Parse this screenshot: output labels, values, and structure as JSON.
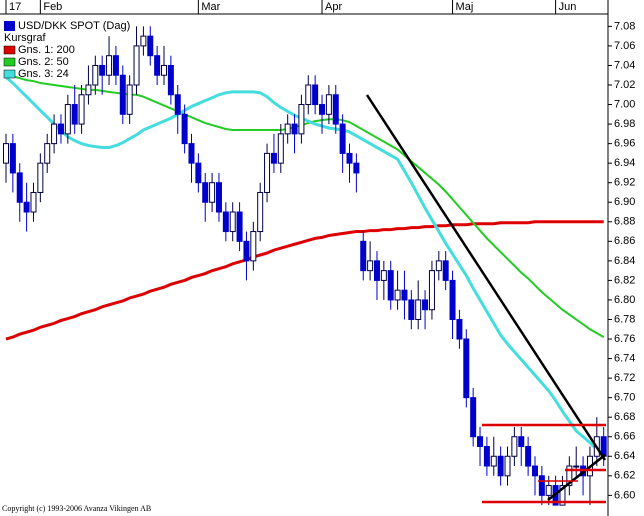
{
  "chart_data": {
    "type": "candlestick",
    "name": "USD/DKK SPOT (Dag)",
    "legend_heading": "Kursgraf",
    "copyright": "Copyright (c) 1993-2006 Avanza Vikingen AB",
    "color": "#0000cc",
    "up_color": "#ffffff",
    "wick_color": "#000044",
    "categories": [
      "17",
      null,
      null,
      null,
      null,
      "Feb",
      null,
      null,
      null,
      null,
      null,
      null,
      null,
      null,
      null,
      null,
      null,
      null,
      null,
      null,
      null,
      null,
      null,
      null,
      null,
      null,
      null,
      null,
      "Mar",
      null,
      null,
      null,
      null,
      null,
      null,
      null,
      null,
      null,
      null,
      null,
      null,
      null,
      null,
      null,
      null,
      null,
      "Apr",
      null,
      null,
      null,
      null,
      null,
      null,
      null,
      null,
      null,
      null,
      null,
      null,
      null,
      null,
      null,
      null,
      null,
      null,
      "Maj",
      null,
      null,
      null,
      null,
      null,
      null,
      null,
      null,
      null,
      null,
      null,
      null,
      null,
      null,
      "Jun",
      null,
      null,
      null,
      null,
      null,
      null,
      null
    ],
    "open": [
      6.94,
      6.96,
      6.93,
      6.9,
      6.89,
      6.91,
      6.94,
      6.96,
      6.98,
      6.97,
      7.0,
      6.98,
      7.01,
      7.02,
      7.04,
      7.03,
      7.05,
      7.03,
      6.99,
      7.02,
      7.06,
      7.07,
      7.05,
      7.03,
      7.04,
      7.01,
      6.99,
      6.96,
      6.94,
      6.92,
      6.9,
      6.92,
      6.89,
      6.87,
      6.89,
      6.86,
      6.84,
      6.87,
      6.91,
      6.95,
      6.94,
      6.97,
      6.98,
      6.97,
      7.0,
      7.02,
      7.0,
      6.99,
      7.01,
      6.98,
      6.95,
      6.94,
      6.86,
      6.83,
      6.84,
      6.82,
      6.83,
      6.8,
      6.81,
      6.8,
      6.78,
      6.8,
      6.79,
      6.83,
      6.84,
      6.82,
      6.78,
      6.76,
      6.7,
      6.66,
      6.65,
      6.63,
      6.64,
      6.62,
      6.64,
      6.66,
      6.65,
      6.63,
      6.62,
      6.6,
      6.61,
      6.59,
      6.61,
      6.63,
      6.63,
      6.62,
      6.64,
      6.66
    ],
    "high": [
      6.97,
      6.97,
      6.94,
      6.92,
      6.92,
      6.95,
      6.97,
      6.99,
      6.99,
      7.01,
      7.02,
      7.02,
      7.04,
      7.05,
      7.05,
      7.07,
      7.06,
      7.04,
      7.03,
      7.08,
      7.08,
      7.08,
      7.06,
      7.06,
      7.05,
      7.02,
      7.0,
      6.97,
      6.95,
      6.93,
      6.93,
      6.93,
      6.9,
      6.9,
      6.9,
      6.87,
      6.88,
      6.92,
      6.96,
      6.97,
      6.98,
      6.99,
      6.99,
      7.01,
      7.03,
      7.03,
      7.01,
      7.02,
      7.02,
      6.99,
      6.96,
      6.95,
      6.87,
      6.86,
      6.85,
      6.84,
      6.84,
      6.83,
      6.83,
      6.81,
      6.82,
      6.81,
      6.84,
      6.85,
      6.85,
      6.83,
      6.79,
      6.77,
      6.71,
      6.67,
      6.66,
      6.66,
      6.65,
      6.65,
      6.67,
      6.67,
      6.66,
      6.64,
      6.63,
      6.62,
      6.62,
      6.62,
      6.64,
      6.65,
      6.64,
      6.65,
      6.68,
      6.67
    ],
    "low": [
      6.92,
      6.91,
      6.88,
      6.87,
      6.88,
      6.9,
      6.93,
      6.95,
      6.96,
      6.96,
      6.97,
      6.97,
      7.0,
      7.01,
      7.01,
      7.02,
      7.02,
      6.98,
      6.98,
      7.01,
      7.05,
      7.04,
      7.02,
      7.02,
      7.0,
      6.97,
      6.95,
      6.92,
      6.91,
      6.88,
      6.89,
      6.88,
      6.86,
      6.86,
      6.85,
      6.82,
      6.83,
      6.86,
      6.9,
      6.93,
      6.93,
      6.96,
      6.95,
      6.96,
      6.99,
      6.99,
      6.97,
      6.98,
      6.97,
      6.93,
      6.92,
      6.91,
      6.82,
      6.82,
      6.8,
      6.8,
      6.79,
      6.79,
      6.78,
      6.77,
      6.77,
      6.77,
      6.78,
      6.82,
      6.81,
      6.76,
      6.75,
      6.69,
      6.65,
      6.63,
      6.62,
      6.62,
      6.61,
      6.61,
      6.63,
      6.63,
      6.62,
      6.6,
      6.59,
      6.59,
      6.59,
      6.59,
      6.6,
      6.62,
      6.6,
      6.59,
      6.63,
      6.63
    ],
    "close": [
      6.96,
      6.93,
      6.9,
      6.89,
      6.91,
      6.94,
      6.96,
      6.98,
      6.97,
      7.0,
      6.98,
      7.01,
      7.02,
      7.04,
      7.03,
      7.05,
      7.03,
      6.99,
      7.02,
      7.06,
      7.07,
      7.05,
      7.03,
      7.04,
      7.01,
      6.99,
      6.96,
      6.94,
      6.92,
      6.9,
      6.92,
      6.89,
      6.87,
      6.89,
      6.86,
      6.84,
      6.87,
      6.91,
      6.95,
      6.94,
      6.97,
      6.98,
      6.97,
      7.0,
      7.02,
      7.0,
      6.99,
      7.01,
      6.98,
      6.95,
      6.94,
      6.93,
      6.83,
      6.84,
      6.82,
      6.83,
      6.8,
      6.81,
      6.8,
      6.78,
      6.8,
      6.79,
      6.83,
      6.84,
      6.82,
      6.78,
      6.76,
      6.7,
      6.66,
      6.65,
      6.63,
      6.64,
      6.62,
      6.64,
      6.66,
      6.65,
      6.63,
      6.62,
      6.6,
      6.61,
      6.59,
      6.61,
      6.63,
      6.63,
      6.62,
      6.64,
      6.66,
      6.64
    ],
    "series": [
      {
        "name": "Gns. 1: 200",
        "color": "#dd0000",
        "width": 3,
        "values": [
          6.76,
          6.762,
          6.765,
          6.767,
          6.769,
          6.772,
          6.774,
          6.776,
          6.779,
          6.781,
          6.783,
          6.786,
          6.788,
          6.79,
          6.793,
          6.795,
          6.797,
          6.799,
          6.802,
          6.804,
          6.806,
          6.809,
          6.811,
          6.813,
          6.816,
          6.818,
          6.82,
          6.823,
          6.825,
          6.827,
          6.83,
          6.832,
          6.834,
          6.837,
          6.839,
          6.841,
          6.844,
          6.846,
          6.848,
          6.851,
          6.853,
          6.855,
          6.857,
          6.859,
          6.861,
          6.863,
          6.864,
          6.866,
          6.867,
          6.868,
          6.869,
          6.87,
          6.87,
          6.871,
          6.871,
          6.872,
          6.872,
          6.873,
          6.873,
          6.874,
          6.874,
          6.875,
          6.875,
          6.876,
          6.876,
          6.877,
          6.877,
          6.877,
          6.878,
          6.878,
          6.878,
          6.878,
          6.879,
          6.879,
          6.879,
          6.879,
          6.879,
          6.88,
          6.88,
          6.88,
          6.88,
          6.88,
          6.88,
          6.88,
          6.88,
          6.88,
          6.88,
          6.88
        ]
      },
      {
        "name": "Gns. 2: 50",
        "color": "#22cc22",
        "width": 2,
        "values": [
          7.03,
          7.029,
          7.027,
          7.025,
          7.024,
          7.022,
          7.021,
          7.02,
          7.019,
          7.018,
          7.017,
          7.016,
          7.015,
          7.015,
          7.014,
          7.013,
          7.012,
          7.011,
          7.01,
          7.01,
          7.008,
          7.005,
          7.002,
          6.999,
          6.996,
          6.993,
          6.99,
          6.987,
          6.984,
          6.981,
          6.979,
          6.977,
          6.975,
          6.974,
          6.974,
          6.974,
          6.974,
          6.974,
          6.974,
          6.974,
          6.974,
          6.975,
          6.977,
          6.979,
          6.981,
          6.983,
          6.984,
          6.985,
          6.985,
          6.984,
          6.982,
          6.978,
          6.974,
          6.97,
          6.966,
          6.962,
          6.958,
          6.954,
          6.948,
          6.942,
          6.936,
          6.93,
          6.924,
          6.918,
          6.911,
          6.903,
          6.895,
          6.887,
          6.879,
          6.871,
          6.863,
          6.856,
          6.849,
          6.842,
          6.835,
          6.828,
          6.822,
          6.815,
          6.808,
          6.802,
          6.796,
          6.79,
          6.785,
          6.78,
          6.775,
          6.77,
          6.766,
          6.762
        ]
      },
      {
        "name": "Gns. 3: 24",
        "color": "#44dddd",
        "width": 3,
        "values": [
          7.028,
          7.022,
          7.015,
          7.008,
          7.001,
          6.994,
          6.987,
          6.98,
          6.973,
          6.967,
          6.963,
          6.96,
          6.958,
          6.957,
          6.956,
          6.956,
          6.958,
          6.961,
          6.965,
          6.969,
          6.974,
          6.977,
          6.98,
          6.983,
          6.986,
          6.99,
          6.994,
          6.998,
          7.001,
          7.004,
          7.007,
          7.01,
          7.012,
          7.013,
          7.013,
          7.013,
          7.013,
          7.012,
          7.008,
          7.002,
          6.997,
          6.993,
          6.989,
          6.986,
          6.983,
          6.98,
          6.978,
          6.976,
          6.975,
          6.974,
          6.972,
          6.968,
          6.964,
          6.96,
          6.956,
          6.952,
          6.948,
          6.944,
          6.932,
          6.92,
          6.907,
          6.894,
          6.882,
          6.87,
          6.858,
          6.847,
          6.836,
          6.825,
          6.812,
          6.8,
          6.788,
          6.776,
          6.764,
          6.755,
          6.747,
          6.739,
          6.731,
          6.723,
          6.715,
          6.707,
          6.697,
          6.686,
          6.676,
          6.666,
          6.66,
          6.654,
          6.647,
          6.641
        ]
      }
    ],
    "ylim": [
      6.585,
      7.107
    ],
    "yticks": [
      {
        "value": 6.6,
        "label": "6.60"
      },
      6.62,
      6.64,
      6.66,
      6.68,
      {
        "value": 6.7,
        "label": "6.70"
      },
      6.72,
      6.74,
      6.76,
      6.78,
      {
        "value": 6.8,
        "label": "6.80"
      },
      6.82,
      6.84,
      6.86,
      6.88,
      {
        "value": 6.9,
        "label": "6.90"
      },
      6.92,
      6.94,
      6.96,
      6.98,
      {
        "value": 7,
        "label": "7.00"
      },
      7.02,
      7.04,
      7.06,
      7.08
    ]
  }
}
